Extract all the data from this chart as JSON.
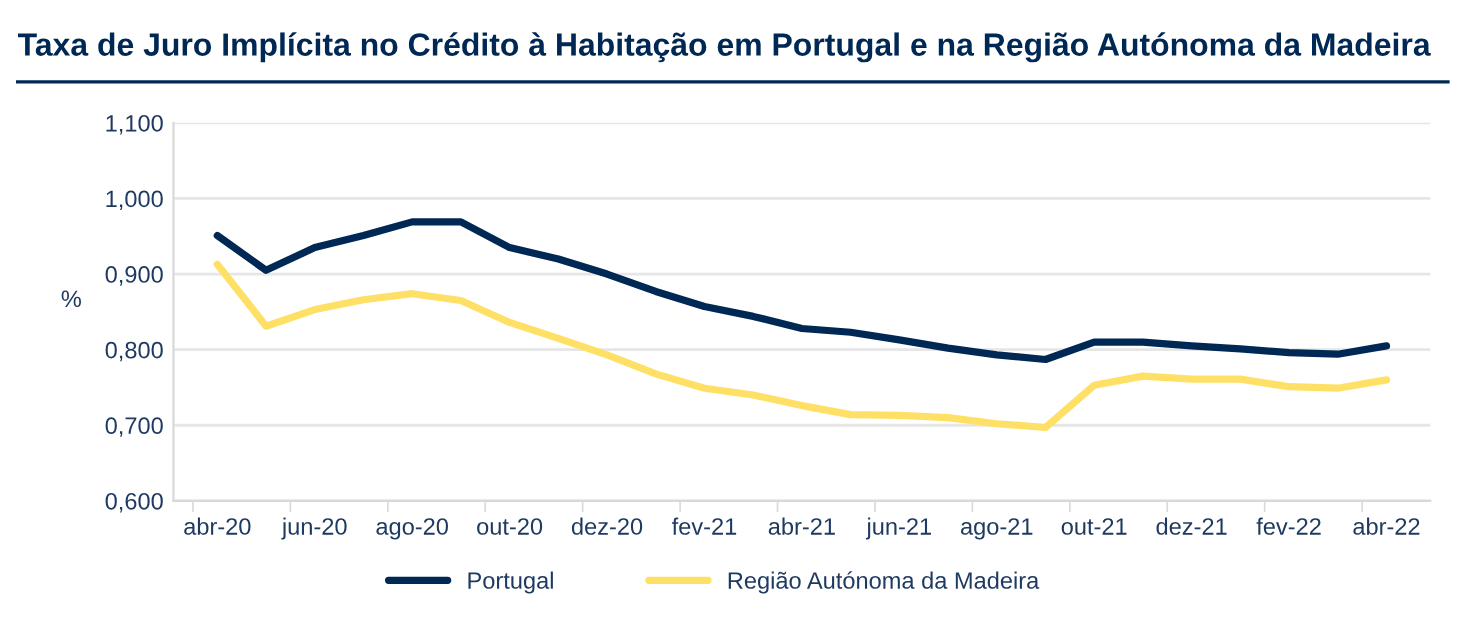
{
  "chart_data": {
    "type": "line",
    "title": "Taxa de Juro Implícita no Crédito à Habitação em Portugal e na Região Autónoma da Madeira",
    "ylabel": "%",
    "categories": [
      "abr-20",
      null,
      "jun-20",
      null,
      "ago-20",
      null,
      "out-20",
      null,
      "dez-20",
      null,
      "fev-21",
      null,
      "abr-21",
      null,
      "jun-21",
      null,
      "ago-21",
      null,
      "out-21",
      null,
      "dez-21",
      null,
      "fev-22",
      null,
      "abr-22"
    ],
    "series": [
      {
        "name": "Portugal",
        "color": "#002855",
        "values": [
          0.951,
          0.905,
          0.935,
          0.951,
          0.969,
          0.969,
          0.935,
          0.92,
          0.9,
          0.877,
          0.857,
          0.844,
          0.828,
          0.823,
          0.813,
          0.802,
          0.793,
          0.787,
          0.81,
          0.81,
          0.805,
          0.801,
          0.796,
          0.794,
          0.805
        ]
      },
      {
        "name": "Região Autónoma da Madeira",
        "color": "#ffe066",
        "values": [
          0.913,
          0.831,
          0.853,
          0.866,
          0.874,
          0.865,
          0.836,
          0.815,
          0.793,
          0.768,
          0.749,
          0.74,
          0.726,
          0.714,
          0.713,
          0.71,
          0.702,
          0.697,
          0.753,
          0.765,
          0.761,
          0.761,
          0.751,
          0.749,
          0.76
        ]
      }
    ],
    "ylim": [
      0.6,
      1.1
    ],
    "yticks": [
      {
        "value": 0.6,
        "label": "0,600"
      },
      {
        "value": 0.7,
        "label": "0,700"
      },
      {
        "value": 0.8,
        "label": "0,800"
      },
      {
        "value": 0.9,
        "label": "0,900"
      },
      {
        "value": 1.0,
        "label": "1,000"
      },
      {
        "value": 1.1,
        "label": "1,100"
      }
    ],
    "grid": "y",
    "legend": "bottom",
    "marker": "none",
    "line_style": "solid"
  }
}
